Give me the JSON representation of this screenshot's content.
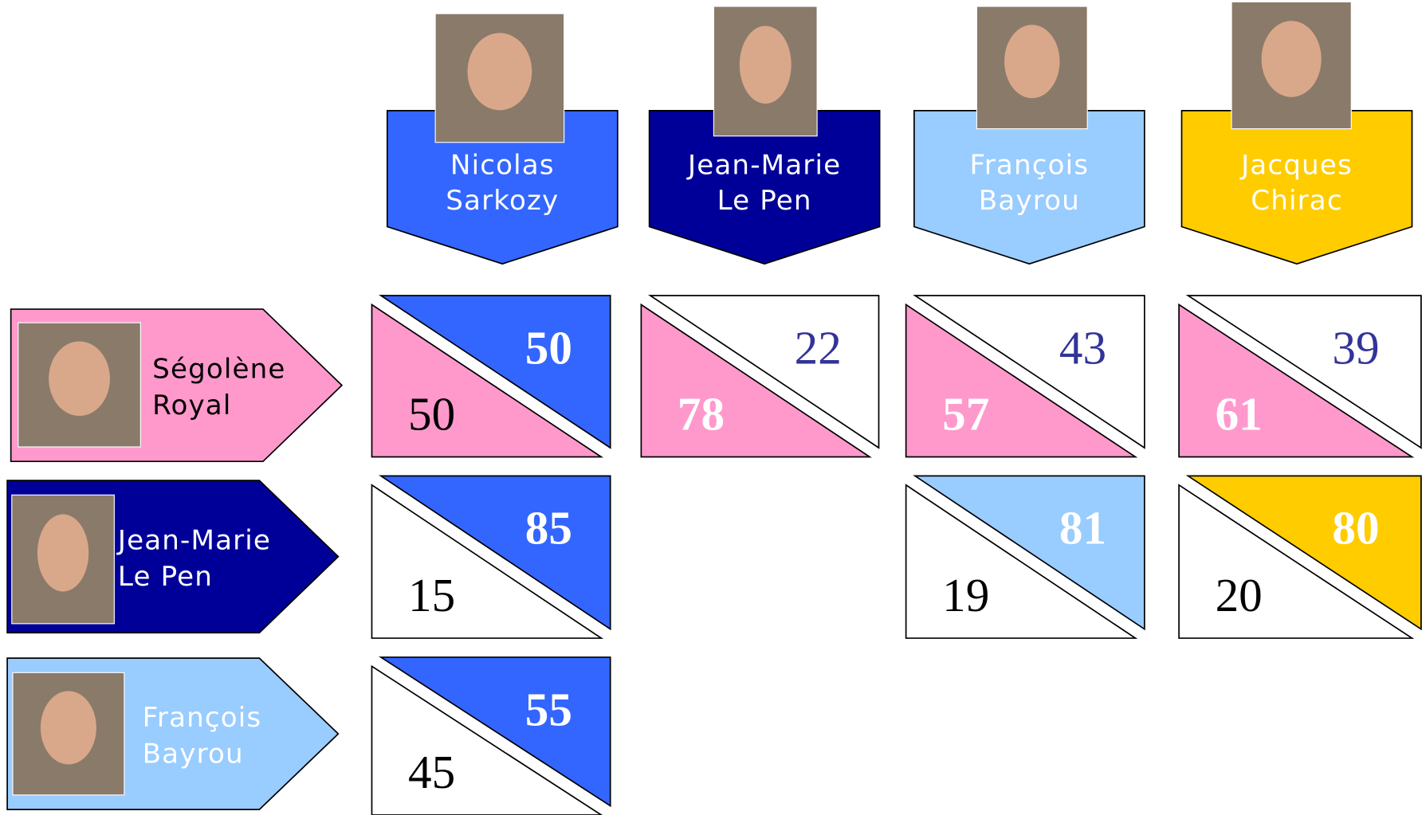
{
  "columns": [
    {
      "name_lines": [
        "Nicolas",
        "Sarkozy"
      ],
      "color": "#3366ff",
      "text_color": "#ffffff"
    },
    {
      "name_lines": [
        "Jean-Marie",
        "Le Pen"
      ],
      "color": "#000099",
      "text_color": "#ffffff"
    },
    {
      "name_lines": [
        "François",
        "Bayrou"
      ],
      "color": "#99ccff",
      "text_color": "#ffffff"
    },
    {
      "name_lines": [
        "Jacques",
        "Chirac"
      ],
      "color": "#ffcc00",
      "text_color": "#ffffff"
    }
  ],
  "rows": [
    {
      "name_lines": [
        "Ségolène",
        "Royal"
      ],
      "color": "#ff99cc",
      "text_color": "#000000",
      "cells": [
        {
          "column_score": 50,
          "row_score": 50
        },
        {
          "column_score": 22,
          "row_score": 78
        },
        {
          "column_score": 43,
          "row_score": 57
        },
        {
          "column_score": 39,
          "row_score": 61
        }
      ]
    },
    {
      "name_lines": [
        "Jean-Marie",
        "Le Pen"
      ],
      "color": "#000099",
      "text_color": "#ffffff",
      "cells": [
        {
          "column_score": 85,
          "row_score": 15
        },
        null,
        {
          "column_score": 81,
          "row_score": 19
        },
        {
          "column_score": 80,
          "row_score": 20
        }
      ]
    },
    {
      "name_lines": [
        "François",
        "Bayrou"
      ],
      "color": "#99ccff",
      "text_color": "#ffffff",
      "cells": [
        {
          "column_score": 55,
          "row_score": 45
        },
        null,
        null,
        null
      ]
    }
  ]
}
